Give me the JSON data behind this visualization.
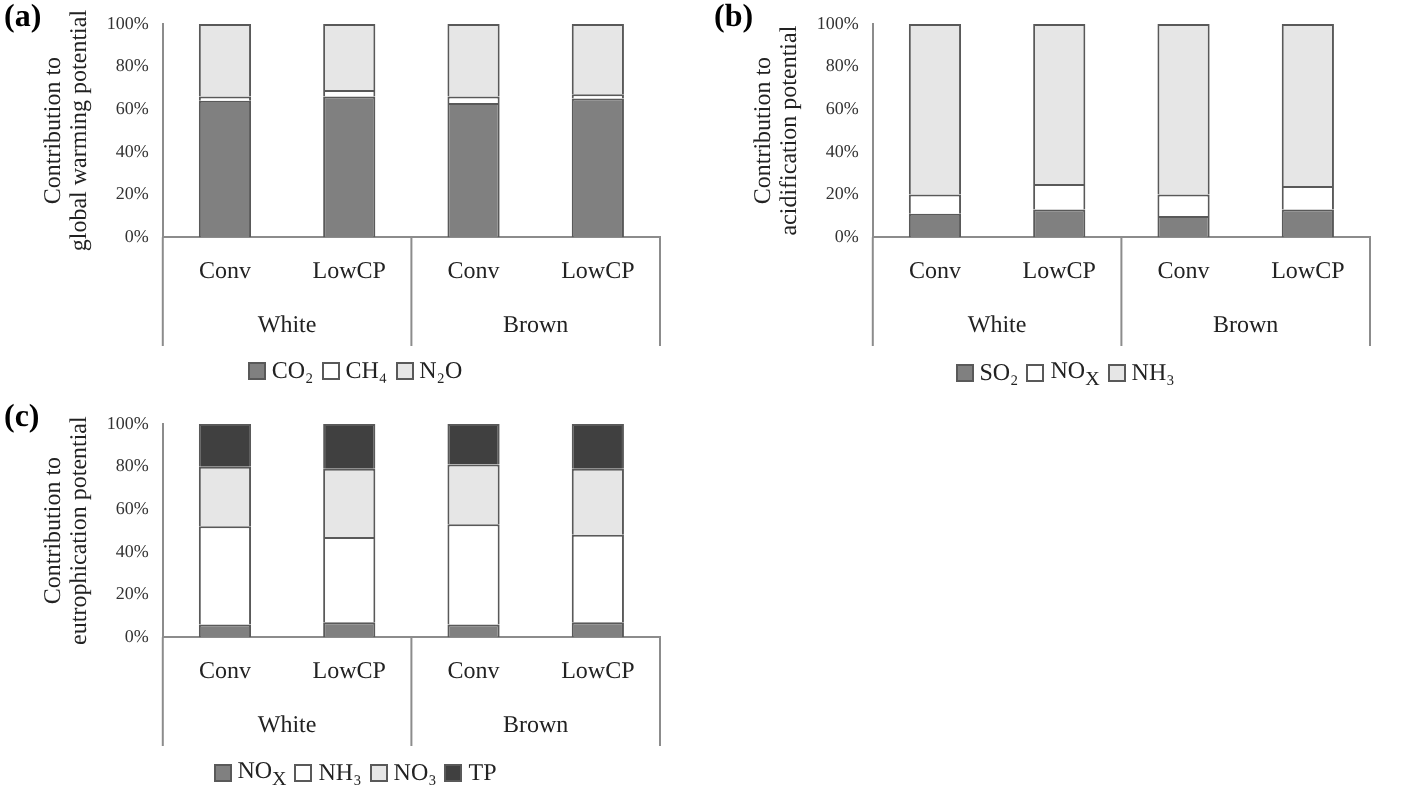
{
  "chart_data": [
    {
      "type": "bar",
      "title": "(a)",
      "ylabel": "Contribution to\nglobal warming potential",
      "categories": [
        "Conv",
        "LowCP",
        "Conv",
        "LowCP"
      ],
      "stacked": true,
      "series": [
        {
          "name": "CO₂",
          "color": "#808080",
          "values": [
            64,
            66,
            63,
            65
          ]
        },
        {
          "name": "CH₄",
          "color": "#ffffff",
          "values": [
            2,
            3,
            3,
            2
          ]
        },
        {
          "name": "N₂O",
          "color": "#e6e6e6",
          "values": [
            34,
            31,
            34,
            33
          ]
        }
      ],
      "ylim": [
        0,
        100
      ],
      "yticks": [
        {
          "value": 0,
          "label": "0%"
        },
        {
          "value": 20,
          "label": "20%"
        },
        {
          "value": 40,
          "label": "40%"
        },
        {
          "value": 60,
          "label": "60%"
        },
        {
          "value": 80,
          "label": "80%"
        },
        {
          "value": 100,
          "label": "100%"
        }
      ],
      "annotations": [
        "White",
        "Brown"
      ],
      "grid": false,
      "legend": "bottom"
    },
    {
      "type": "bar",
      "title": "(b)",
      "ylabel": "Contribution to\nacidification potential",
      "categories": [
        "Conv",
        "LowCP",
        "Conv",
        "LowCP"
      ],
      "stacked": true,
      "series": [
        {
          "name": "SO₂",
          "color": "#808080",
          "values": [
            11,
            13,
            10,
            13
          ]
        },
        {
          "name": "NO$_{X}$",
          "color": "#ffffff",
          "values": [
            9,
            12,
            10,
            11
          ]
        },
        {
          "name": "NH₃",
          "color": "#e6e6e6",
          "values": [
            80,
            75,
            80,
            76
          ]
        }
      ],
      "ylim": [
        0,
        100
      ],
      "yticks": [
        {
          "value": 0,
          "label": "0%"
        },
        {
          "value": 20,
          "label": "20%"
        },
        {
          "value": 40,
          "label": "40%"
        },
        {
          "value": 60,
          "label": "60%"
        },
        {
          "value": 80,
          "label": "80%"
        },
        {
          "value": 100,
          "label": "100%"
        }
      ],
      "annotations": [
        "White",
        "Brown"
      ],
      "grid": false,
      "legend": "bottom"
    },
    {
      "type": "bar",
      "title": "(c)",
      "ylabel": "Contribution to\neutrophication potential",
      "categories": [
        "Conv",
        "LowCP",
        "Conv",
        "LowCP"
      ],
      "stacked": true,
      "series": [
        {
          "name": "NO$_{X}$",
          "color": "#808080",
          "values": [
            6,
            7,
            6,
            7
          ]
        },
        {
          "name": "NH₃",
          "color": "#ffffff",
          "values": [
            46,
            40,
            47,
            41
          ]
        },
        {
          "name": "NO₃",
          "color": "#e6e6e6",
          "values": [
            28,
            32,
            28,
            31
          ]
        },
        {
          "name": "TP",
          "color": "#404040",
          "values": [
            20,
            21,
            19,
            21
          ]
        }
      ],
      "ylim": [
        0,
        100
      ],
      "yticks": [
        {
          "value": 0,
          "label": "0%"
        },
        {
          "value": 20,
          "label": "20%"
        },
        {
          "value": 40,
          "label": "40%"
        },
        {
          "value": 60,
          "label": "60%"
        },
        {
          "value": 80,
          "label": "80%"
        },
        {
          "value": 100,
          "label": "100%"
        }
      ],
      "annotations": [
        "White",
        "Brown"
      ],
      "grid": false,
      "legend": "bottom"
    }
  ]
}
